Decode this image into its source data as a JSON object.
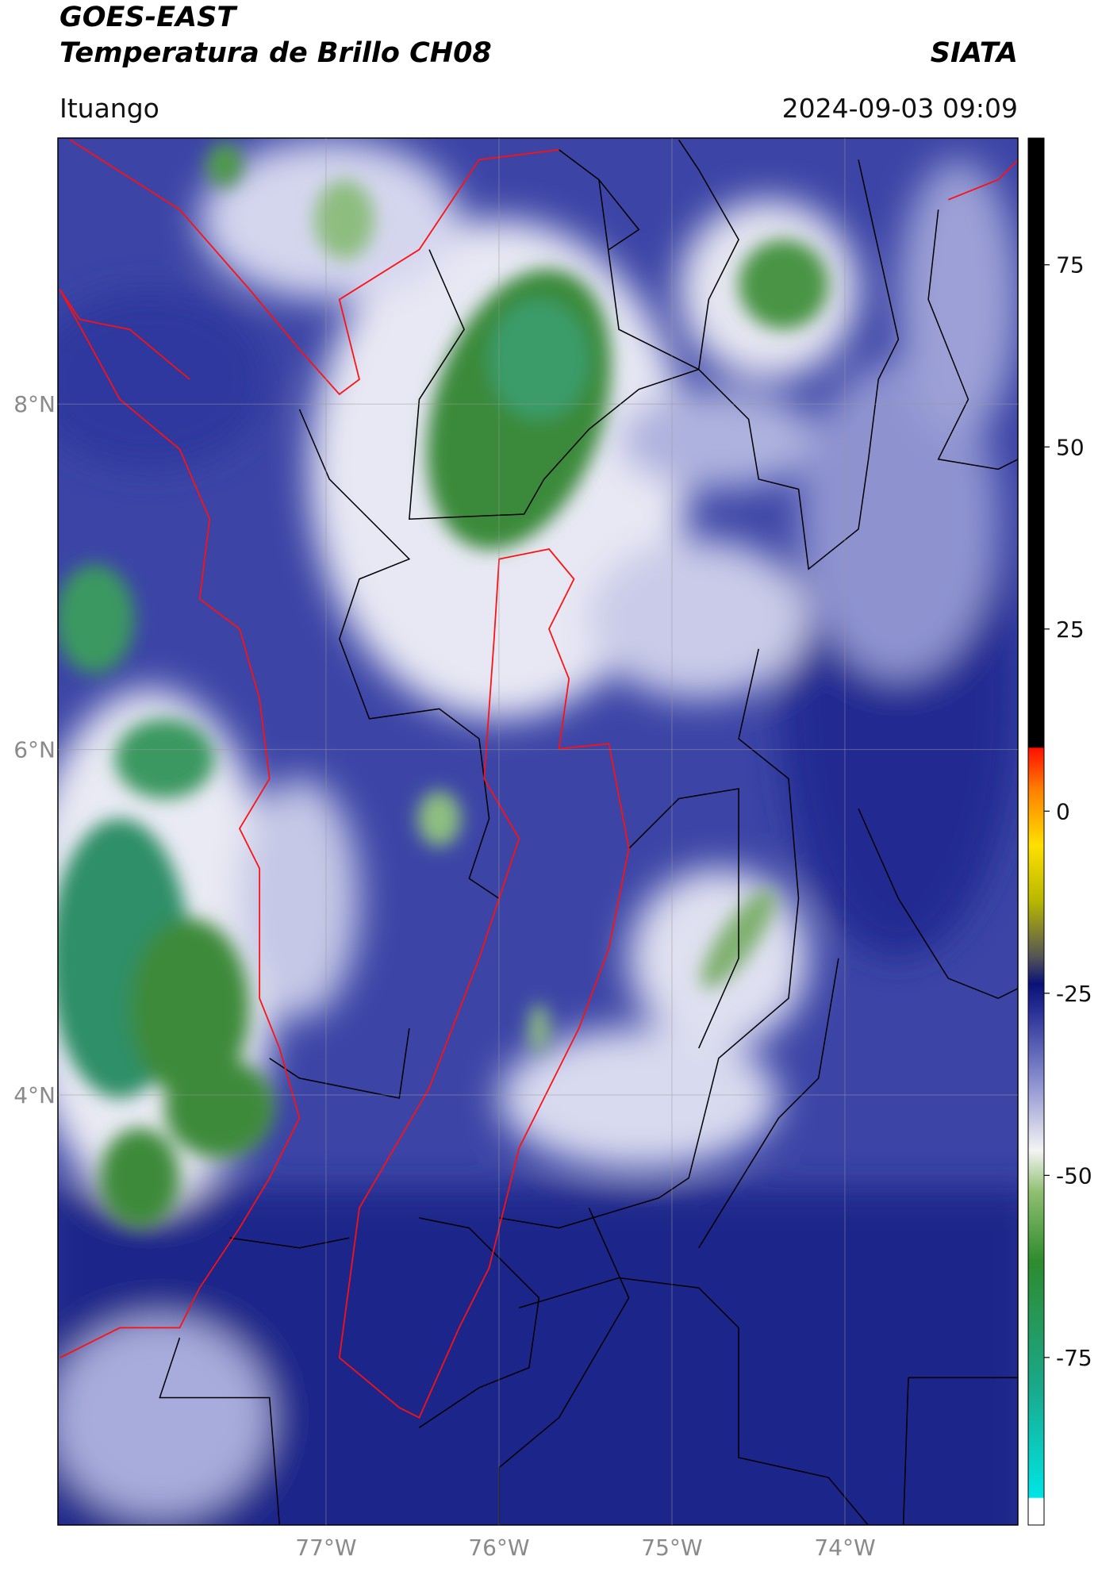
{
  "header": {
    "title": "GOES-EAST",
    "subtitle": "Temperatura de Brillo CH08",
    "agency": "SIATA",
    "location": "Ituango",
    "timestamp": "2024-09-03 09:09"
  },
  "map": {
    "xlim": [
      -78.55,
      -73.0
    ],
    "ylim": [
      1.51,
      9.54
    ],
    "xticks": [
      {
        "value": -77,
        "label": "77°W"
      },
      {
        "value": -76,
        "label": "76°W"
      },
      {
        "value": -75,
        "label": "75°W"
      },
      {
        "value": -74,
        "label": "74°W"
      }
    ],
    "yticks": [
      {
        "value": 8,
        "label": "8°N"
      },
      {
        "value": 6,
        "label": "6°N"
      },
      {
        "value": 4,
        "label": "4°N"
      }
    ]
  },
  "colorbar": {
    "lim": [
      -98,
      92.4
    ],
    "ticks": [
      75,
      50,
      25,
      0,
      -25,
      -50,
      -75
    ]
  }
}
